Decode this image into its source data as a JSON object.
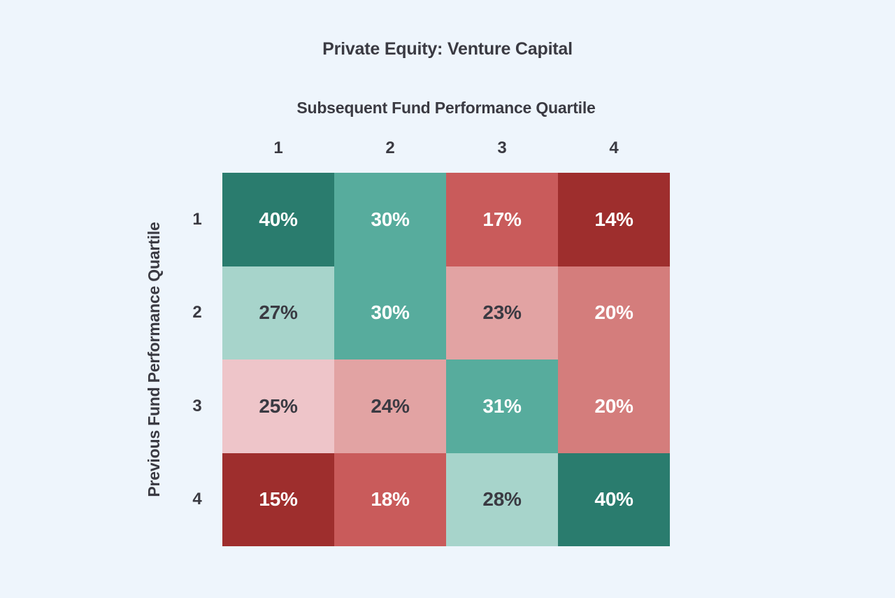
{
  "page": {
    "background_color": "#eef5fc"
  },
  "chart_data": {
    "type": "heatmap",
    "title": "Private Equity: Venture Capital",
    "xlabel": "Subsequent Fund Performance Quartile",
    "ylabel": "Previous Fund Performance Quartile",
    "columns": [
      "1",
      "2",
      "3",
      "4"
    ],
    "rows": [
      "1",
      "2",
      "3",
      "4"
    ],
    "values": [
      [
        40,
        30,
        17,
        14
      ],
      [
        27,
        30,
        23,
        20
      ],
      [
        25,
        24,
        31,
        20
      ],
      [
        15,
        18,
        28,
        40
      ]
    ],
    "cell_labels": [
      [
        "40%",
        "30%",
        "17%",
        "14%"
      ],
      [
        "27%",
        "30%",
        "23%",
        "20%"
      ],
      [
        "25%",
        "24%",
        "31%",
        "20%"
      ],
      [
        "15%",
        "18%",
        "28%",
        "40%"
      ]
    ],
    "cell_colors": [
      [
        "#2a7c6e",
        "#57ac9d",
        "#c95b5b",
        "#9e2e2d"
      ],
      [
        "#a7d4cb",
        "#57ac9d",
        "#e2a3a3",
        "#d47d7c"
      ],
      [
        "#eec5c9",
        "#e2a3a3",
        "#57ac9d",
        "#d47d7c"
      ],
      [
        "#9e2e2d",
        "#c95b5b",
        "#a7d4cb",
        "#2a7c6e"
      ]
    ],
    "cell_text_colors": [
      [
        "#ffffff",
        "#ffffff",
        "#ffffff",
        "#ffffff"
      ],
      [
        "#3a3a42",
        "#ffffff",
        "#3a3a42",
        "#ffffff"
      ],
      [
        "#3a3a42",
        "#3a3a42",
        "#ffffff",
        "#ffffff"
      ],
      [
        "#ffffff",
        "#ffffff",
        "#3a3a42",
        "#ffffff"
      ]
    ],
    "legend": "none",
    "grid_lines": "off",
    "palette": {
      "teal_dark": "#2a7c6e",
      "teal_mid": "#57ac9d",
      "teal_light": "#a7d4cb",
      "pink_lightest": "#eec5c9",
      "pink_light": "#e2a3a3",
      "pink_mid": "#d47d7c",
      "red_mid": "#c95b5b",
      "red_dark": "#9e2e2d"
    },
    "text_color_dark": "#3a3a42",
    "text_color_light": "#ffffff"
  }
}
